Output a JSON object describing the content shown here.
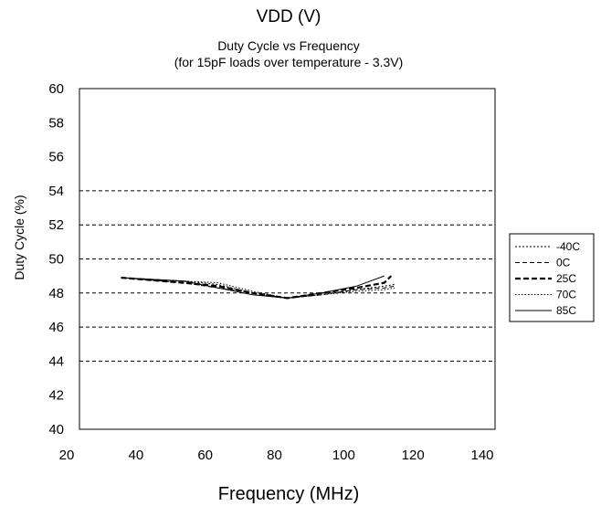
{
  "header_text": "VDD (V)",
  "chart_data": {
    "type": "line",
    "title": "Duty Cycle vs Frequency",
    "subtitle": "(for 15pF loads over temperature - 3.3V)",
    "xlabel": "Frequency (MHz)",
    "ylabel": "Duty Cycle (%)",
    "xlim": [
      20,
      140
    ],
    "ylim": [
      40,
      60
    ],
    "x_ticks": [
      20,
      40,
      60,
      80,
      100,
      120,
      140
    ],
    "y_ticks": [
      40,
      42,
      44,
      46,
      48,
      50,
      52,
      54,
      56,
      58,
      60
    ],
    "gridlines_y": [
      44,
      46,
      48,
      50,
      52,
      54
    ],
    "grid": "horizontal dashed",
    "legend_position": "right",
    "series": [
      {
        "name": "-40C",
        "style": "dotted",
        "x": [
          32,
          50,
          60,
          70,
          80,
          90,
          100,
          108,
          111
        ],
        "y": [
          48.9,
          48.7,
          48.5,
          48.0,
          47.7,
          47.9,
          48.2,
          48.4,
          48.5
        ]
      },
      {
        "name": "0C",
        "style": "dashed",
        "x": [
          32,
          50,
          60,
          70,
          80,
          90,
          100,
          108,
          111
        ],
        "y": [
          48.9,
          48.6,
          48.3,
          48.0,
          47.7,
          47.9,
          48.2,
          48.3,
          48.4
        ]
      },
      {
        "name": "25C",
        "style": "bold-dashed",
        "x": [
          32,
          50,
          60,
          70,
          80,
          90,
          100,
          108,
          110
        ],
        "y": [
          48.9,
          48.6,
          48.4,
          48.0,
          47.7,
          48.0,
          48.3,
          48.6,
          49.0
        ]
      },
      {
        "name": "70C",
        "style": "fine-dotted",
        "x": [
          32,
          50,
          60,
          70,
          80,
          90,
          100,
          108,
          111
        ],
        "y": [
          48.9,
          48.7,
          48.6,
          48.1,
          47.7,
          47.9,
          48.1,
          48.2,
          48.3
        ]
      },
      {
        "name": "85C",
        "style": "solid",
        "x": [
          32,
          50,
          60,
          70,
          80,
          90,
          100,
          108
        ],
        "y": [
          48.9,
          48.7,
          48.3,
          47.9,
          47.7,
          48.0,
          48.4,
          49.0
        ]
      }
    ]
  }
}
